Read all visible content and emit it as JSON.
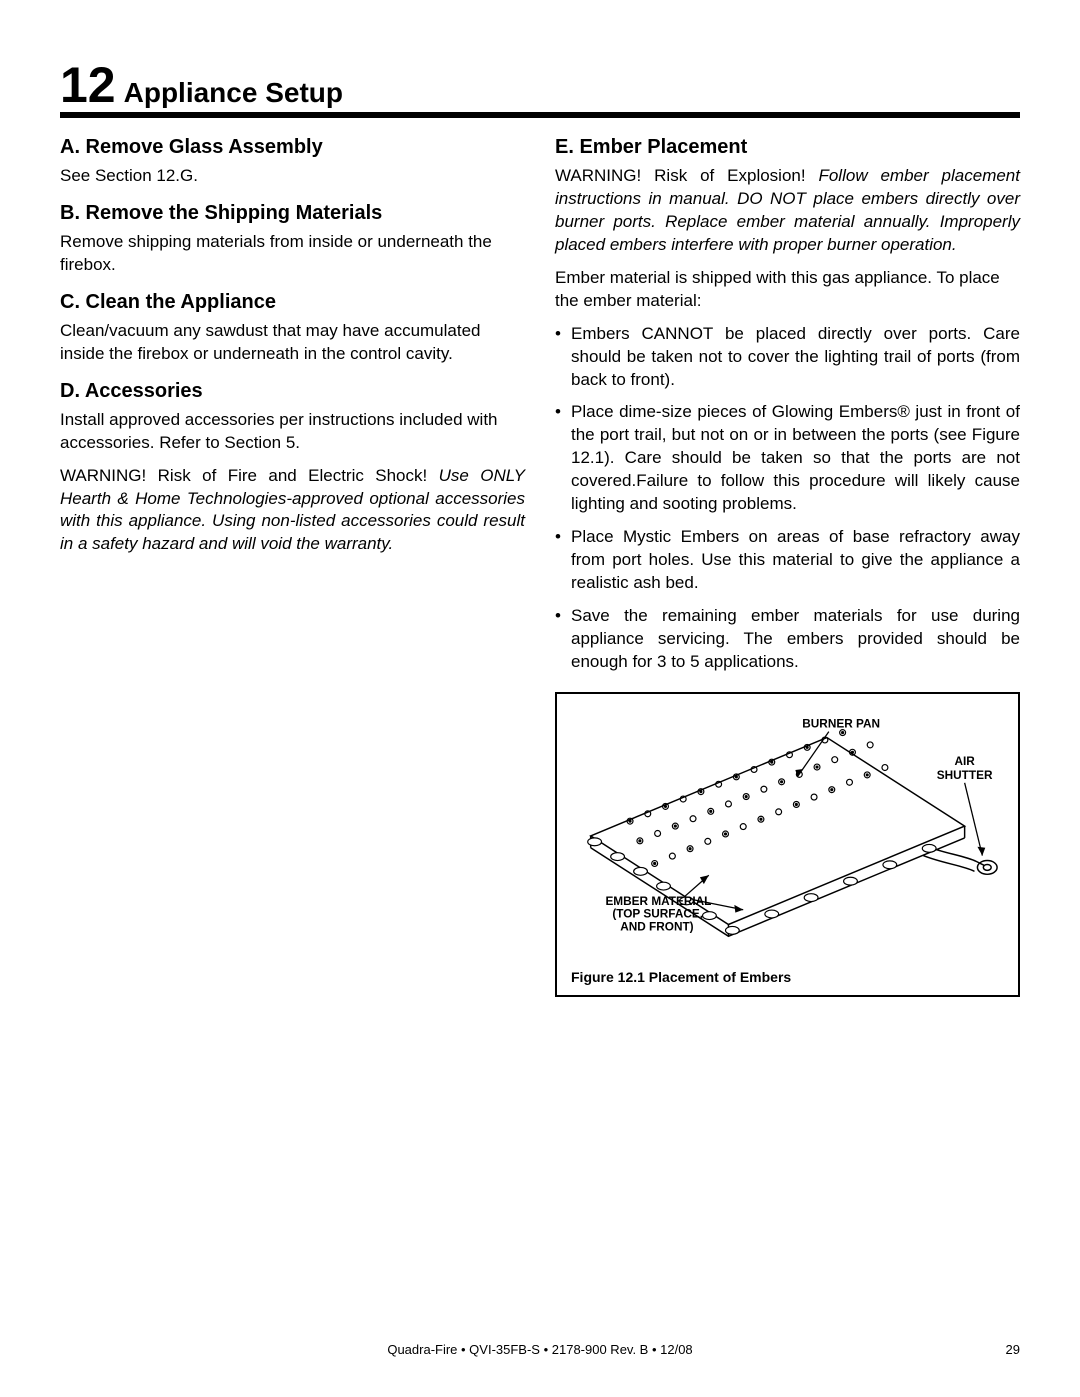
{
  "chapter": {
    "number": "12",
    "title": "Appliance Setup"
  },
  "left": {
    "a_h": "A.  Remove Glass Assembly",
    "a_p": "See Section 12.G.",
    "b_h": "B.  Remove the Shipping Materials",
    "b_p": "Remove shipping materials from inside or underneath the firebox.",
    "c_h": "C.  Clean the Appliance",
    "c_p": "Clean/vacuum any sawdust that may have accumulated inside the firebox or underneath in the control cavity.",
    "d_h": "D.  Accessories",
    "d_p1": "Install approved accessories per instructions included with accessories. Refer to Section 5.",
    "d_warn_lead": "WARNING! Risk of Fire and Electric Shock!   ",
    "d_warn_body": "Use ONLY Hearth & Home Technologies-approved optional accessories with this appliance. Using non-listed accessories could result in a safety hazard and will void the warranty."
  },
  "right": {
    "e_h": "E.  Ember Placement",
    "e_warn_lead": "WARNING! Risk of Explosion!   ",
    "e_warn_body": "Follow ember placement instructions in manual. DO NOT place embers directly over burner ports. Replace ember material annually. Improperly placed embers interfere with proper burner operation.",
    "e_intro": "Ember material is shipped with this gas appliance. To place the ember material:",
    "bullets": [
      "Embers CANNOT be placed directly over ports. Care should be taken not to cover the lighting trail of ports (from back to front).",
      "Place dime-size pieces of Glowing Embers®  just in front of the port trail, but not on or in between the ports (see Figure 12.1). Care should be taken so that the ports are not covered.Failure to follow this procedure will likely cause lighting and sooting problems.",
      "Place Mystic Embers on areas of base refractory away from port holes. Use this material to give the appliance a realistic ash bed.",
      "Save the remaining ember materials for use during appliance servicing. The embers provided should be enough for 3 to 5 applications."
    ]
  },
  "figure": {
    "label_burner": "BURNER PAN",
    "label_air1": "AIR",
    "label_air2": "SHUTTER",
    "label_ember1": "EMBER MATERIAL",
    "label_ember2": "(TOP SURFACE,",
    "label_ember3": "AND FRONT)",
    "caption": "Figure 12.1  Placement of Embers",
    "stroke": "#000000",
    "stroke_w": 1.5
  },
  "footer": {
    "center": "Quadra-Fire  •  QVI-35FB-S  •  2178-900 Rev. B  •  12/08",
    "page": "29"
  }
}
